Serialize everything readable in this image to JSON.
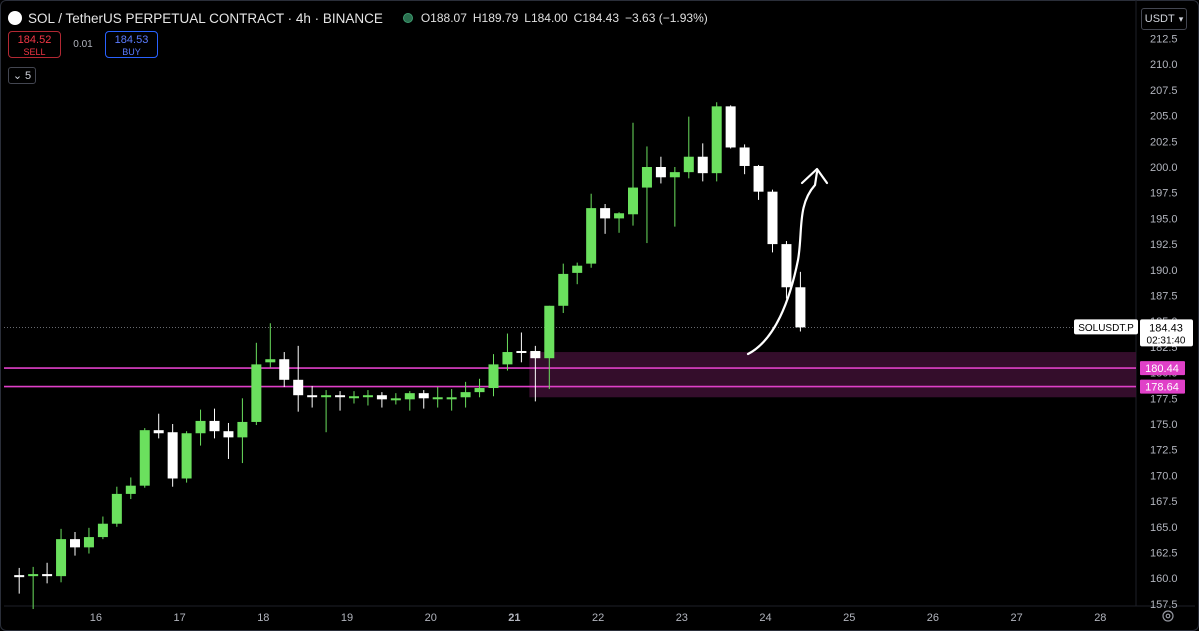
{
  "header": {
    "title": "SOL / TetherUS PERPETUAL CONTRACT · 4h · BINANCE",
    "open": "O188.07",
    "high": "H189.79",
    "low": "L184.00",
    "close": "C184.43",
    "change": "−3.63 (−1.93%)"
  },
  "trade": {
    "sell_price": "184.52",
    "sell_label": "SELL",
    "spread": "0.01",
    "buy_price": "184.53",
    "buy_label": "BUY"
  },
  "collapse_count": "5",
  "currency": "USDT",
  "price_tag": {
    "symbol": "SOLUSDT.P",
    "price": "184.43",
    "countdown": "02:31:40"
  },
  "levels": [
    "180.44",
    "178.64"
  ],
  "colors": {
    "up": "#6be05e",
    "down": "#ffffff",
    "zone": "#3d0f33",
    "level": "#e040c8",
    "background": "#000000"
  },
  "chart_data": {
    "type": "candlestick",
    "title": "SOL / TetherUS PERPETUAL CONTRACT · 4h · BINANCE",
    "ylim": [
      156.5,
      213.5
    ],
    "y_ticks": [
      157.5,
      160.0,
      162.5,
      165.0,
      167.5,
      170.0,
      172.5,
      175.0,
      177.5,
      180.0,
      182.5,
      185.0,
      187.5,
      190.0,
      192.5,
      195.0,
      197.5,
      200.0,
      202.5,
      205.0,
      207.5,
      210.0,
      212.5
    ],
    "x_ticks": [
      "16",
      "17",
      "18",
      "19",
      "20",
      "21",
      "22",
      "23",
      "24",
      "25",
      "26",
      "27",
      "28"
    ],
    "x_tick_index": [
      5.5,
      11.5,
      17.5,
      23.5,
      29.5,
      35.5,
      41.5,
      47.5,
      53.5,
      59.5,
      65.5,
      71.5,
      77.5
    ],
    "candles": [
      {
        "o": 160.3,
        "h": 161.0,
        "l": 158.5,
        "c": 160.1
      },
      {
        "o": 160.2,
        "h": 161.1,
        "l": 157.0,
        "c": 160.4
      },
      {
        "o": 160.4,
        "h": 161.5,
        "l": 159.5,
        "c": 160.2
      },
      {
        "o": 160.2,
        "h": 164.8,
        "l": 159.6,
        "c": 163.8
      },
      {
        "o": 163.8,
        "h": 164.5,
        "l": 162.2,
        "c": 163.0
      },
      {
        "o": 163.0,
        "h": 164.9,
        "l": 162.4,
        "c": 164.0
      },
      {
        "o": 164.0,
        "h": 166.0,
        "l": 163.8,
        "c": 165.3
      },
      {
        "o": 165.3,
        "h": 168.9,
        "l": 165.0,
        "c": 168.2
      },
      {
        "o": 168.2,
        "h": 169.8,
        "l": 167.7,
        "c": 169.0
      },
      {
        "o": 169.0,
        "h": 174.6,
        "l": 168.8,
        "c": 174.4
      },
      {
        "o": 174.4,
        "h": 176.0,
        "l": 173.6,
        "c": 174.1
      },
      {
        "o": 174.2,
        "h": 175.0,
        "l": 168.9,
        "c": 169.7
      },
      {
        "o": 169.7,
        "h": 174.3,
        "l": 169.3,
        "c": 174.1
      },
      {
        "o": 174.1,
        "h": 176.4,
        "l": 172.9,
        "c": 175.3
      },
      {
        "o": 175.3,
        "h": 176.5,
        "l": 173.6,
        "c": 174.3
      },
      {
        "o": 174.3,
        "h": 175.1,
        "l": 171.6,
        "c": 173.7
      },
      {
        "o": 173.7,
        "h": 177.5,
        "l": 171.2,
        "c": 175.2
      },
      {
        "o": 175.2,
        "h": 182.9,
        "l": 174.9,
        "c": 180.8
      },
      {
        "o": 181.0,
        "h": 184.8,
        "l": 180.5,
        "c": 181.3
      },
      {
        "o": 181.3,
        "h": 182.0,
        "l": 178.6,
        "c": 179.3
      },
      {
        "o": 179.3,
        "h": 182.6,
        "l": 176.2,
        "c": 177.8
      },
      {
        "o": 177.8,
        "h": 178.7,
        "l": 176.6,
        "c": 177.7
      },
      {
        "o": 177.7,
        "h": 178.3,
        "l": 174.2,
        "c": 177.8
      },
      {
        "o": 177.8,
        "h": 178.2,
        "l": 176.3,
        "c": 177.7
      },
      {
        "o": 177.7,
        "h": 178.2,
        "l": 177.0,
        "c": 177.7
      },
      {
        "o": 177.7,
        "h": 178.3,
        "l": 176.8,
        "c": 177.8
      },
      {
        "o": 177.8,
        "h": 178.1,
        "l": 176.6,
        "c": 177.4
      },
      {
        "o": 177.5,
        "h": 178.0,
        "l": 176.9,
        "c": 177.5
      },
      {
        "o": 177.4,
        "h": 178.2,
        "l": 176.3,
        "c": 178.0
      },
      {
        "o": 178.0,
        "h": 178.3,
        "l": 176.5,
        "c": 177.5
      },
      {
        "o": 177.6,
        "h": 178.6,
        "l": 176.6,
        "c": 177.6
      },
      {
        "o": 177.4,
        "h": 178.4,
        "l": 176.3,
        "c": 177.6
      },
      {
        "o": 177.6,
        "h": 179.1,
        "l": 176.6,
        "c": 178.1
      },
      {
        "o": 178.1,
        "h": 179.4,
        "l": 177.6,
        "c": 178.5
      },
      {
        "o": 178.5,
        "h": 181.8,
        "l": 177.7,
        "c": 180.8
      },
      {
        "o": 180.8,
        "h": 183.8,
        "l": 180.2,
        "c": 182.0
      },
      {
        "o": 182.1,
        "h": 183.9,
        "l": 181.0,
        "c": 182.0
      },
      {
        "o": 182.1,
        "h": 182.6,
        "l": 177.2,
        "c": 181.4
      },
      {
        "o": 181.4,
        "h": 186.5,
        "l": 178.4,
        "c": 186.5
      },
      {
        "o": 186.5,
        "h": 190.6,
        "l": 185.8,
        "c": 189.6
      },
      {
        "o": 189.7,
        "h": 190.7,
        "l": 188.6,
        "c": 190.4
      },
      {
        "o": 190.6,
        "h": 197.4,
        "l": 190.2,
        "c": 196.0
      },
      {
        "o": 196.0,
        "h": 196.4,
        "l": 193.5,
        "c": 195.0
      },
      {
        "o": 195.0,
        "h": 195.6,
        "l": 193.6,
        "c": 195.5
      },
      {
        "o": 195.4,
        "h": 204.3,
        "l": 194.3,
        "c": 198.0
      },
      {
        "o": 198.0,
        "h": 202.0,
        "l": 192.6,
        "c": 200.0
      },
      {
        "o": 200.0,
        "h": 201.0,
        "l": 198.4,
        "c": 199.0
      },
      {
        "o": 199.0,
        "h": 200.0,
        "l": 194.2,
        "c": 199.5
      },
      {
        "o": 199.5,
        "h": 204.9,
        "l": 198.9,
        "c": 201.0
      },
      {
        "o": 201.0,
        "h": 202.3,
        "l": 198.6,
        "c": 199.4
      },
      {
        "o": 199.4,
        "h": 206.3,
        "l": 198.6,
        "c": 205.9
      },
      {
        "o": 205.9,
        "h": 206.0,
        "l": 201.8,
        "c": 201.9
      },
      {
        "o": 201.9,
        "h": 202.2,
        "l": 199.3,
        "c": 200.1
      },
      {
        "o": 200.1,
        "h": 200.2,
        "l": 196.8,
        "c": 197.6
      },
      {
        "o": 197.6,
        "h": 197.8,
        "l": 191.7,
        "c": 192.5
      },
      {
        "o": 192.5,
        "h": 192.8,
        "l": 187.2,
        "c": 188.3
      },
      {
        "o": 188.3,
        "h": 189.8,
        "l": 184.0,
        "c": 184.4
      }
    ],
    "annotations": [
      "up arrow drawn from the support zone toward 200.0"
    ]
  }
}
